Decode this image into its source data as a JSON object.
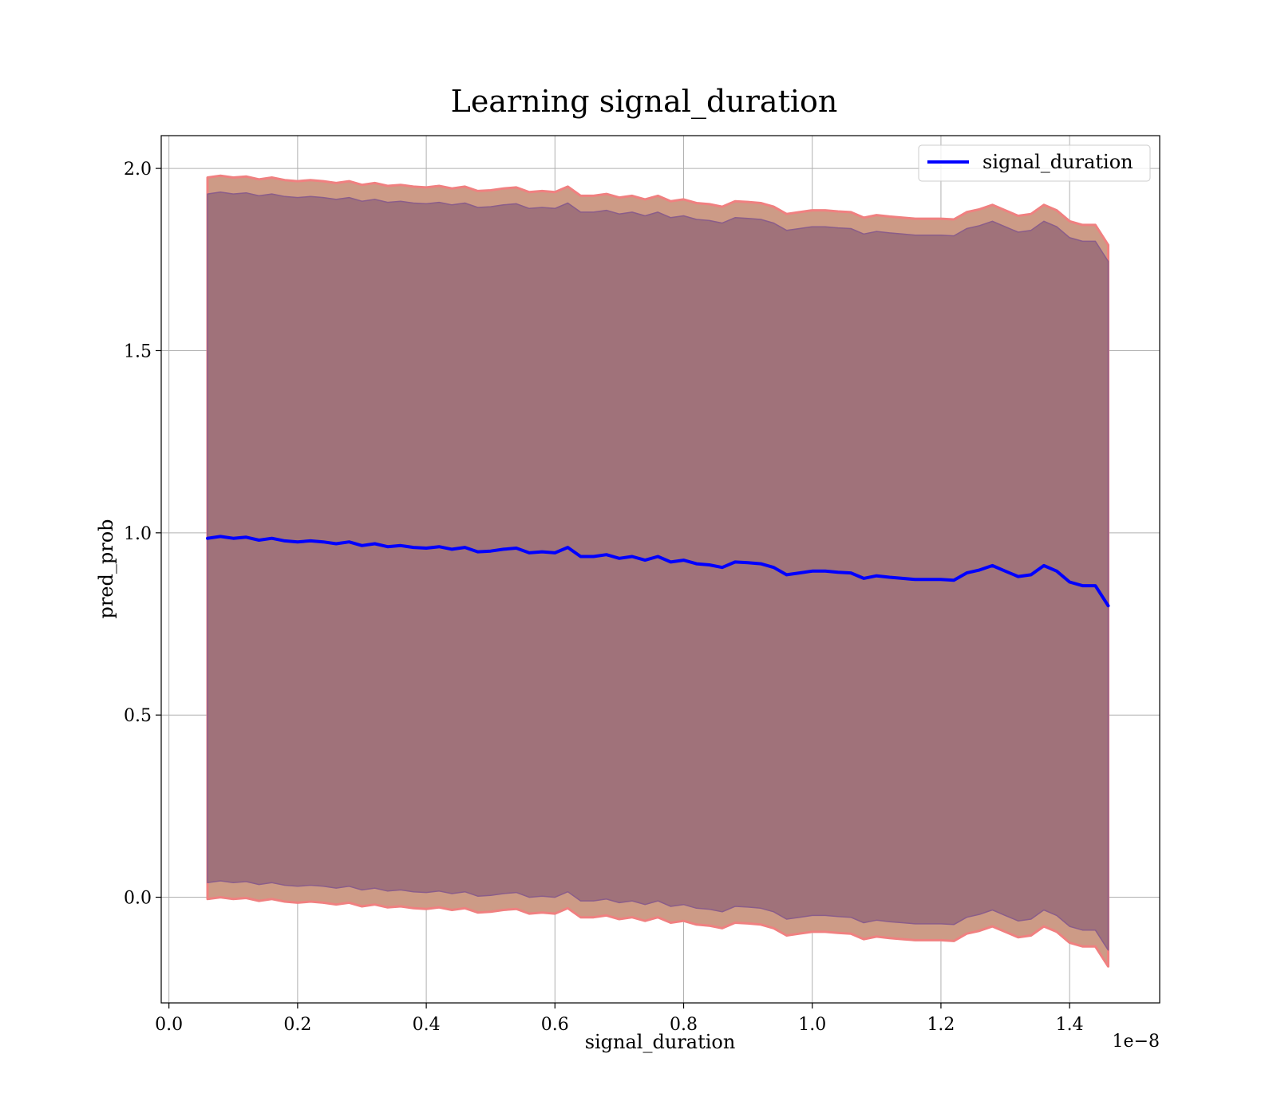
{
  "chart_data": {
    "type": "area",
    "title": "Learning signal_duration",
    "xlabel": "signal_duration",
    "ylabel": "pred_prob",
    "x_offset_text": "1e−8",
    "xlim": [
      -0.012,
      1.54
    ],
    "ylim": [
      -0.29,
      2.09
    ],
    "x_ticks": [
      0.0,
      0.2,
      0.4,
      0.6,
      0.8,
      1.0,
      1.2,
      1.4
    ],
    "x_tick_labels": [
      "0.0",
      "0.2",
      "0.4",
      "0.6",
      "0.8",
      "1.0",
      "1.2",
      "1.4"
    ],
    "y_ticks": [
      0.0,
      0.5,
      1.0,
      1.5,
      2.0
    ],
    "y_tick_labels": [
      "0.0",
      "0.5",
      "1.0",
      "1.5",
      "2.0"
    ],
    "grid": true,
    "legend_position": "top-right",
    "colors": {
      "line": "#0000ff",
      "outer_band": "#cd9b86",
      "outer_edge": "#f08080",
      "inner_band": "#a0727a",
      "inner_edge": "#8a5d8a"
    },
    "series": [
      {
        "name": "signal_duration",
        "x": [
          0.06,
          0.08,
          0.1,
          0.12,
          0.14,
          0.16,
          0.18,
          0.2,
          0.22,
          0.24,
          0.26,
          0.28,
          0.3,
          0.32,
          0.34,
          0.36,
          0.38,
          0.4,
          0.42,
          0.44,
          0.46,
          0.48,
          0.5,
          0.52,
          0.54,
          0.56,
          0.58,
          0.6,
          0.62,
          0.64,
          0.66,
          0.68,
          0.7,
          0.72,
          0.74,
          0.76,
          0.78,
          0.8,
          0.82,
          0.84,
          0.86,
          0.88,
          0.9,
          0.92,
          0.94,
          0.96,
          0.98,
          1.0,
          1.02,
          1.04,
          1.06,
          1.08,
          1.1,
          1.12,
          1.14,
          1.16,
          1.18,
          1.2,
          1.22,
          1.24,
          1.26,
          1.28,
          1.3,
          1.32,
          1.34,
          1.36,
          1.38,
          1.4,
          1.42,
          1.44,
          1.46
        ],
        "y": [
          0.985,
          0.99,
          0.985,
          0.988,
          0.98,
          0.985,
          0.978,
          0.975,
          0.978,
          0.975,
          0.97,
          0.975,
          0.965,
          0.97,
          0.962,
          0.965,
          0.96,
          0.958,
          0.962,
          0.955,
          0.96,
          0.948,
          0.95,
          0.955,
          0.958,
          0.945,
          0.948,
          0.945,
          0.96,
          0.935,
          0.935,
          0.94,
          0.93,
          0.935,
          0.925,
          0.935,
          0.92,
          0.925,
          0.915,
          0.912,
          0.905,
          0.92,
          0.918,
          0.915,
          0.905,
          0.885,
          0.89,
          0.895,
          0.895,
          0.892,
          0.89,
          0.875,
          0.882,
          0.878,
          0.875,
          0.872,
          0.872,
          0.872,
          0.87,
          0.89,
          0.898,
          0.91,
          0.895,
          0.88,
          0.885,
          0.91,
          0.895,
          0.865,
          0.855,
          0.855,
          0.8
        ]
      }
    ]
  }
}
